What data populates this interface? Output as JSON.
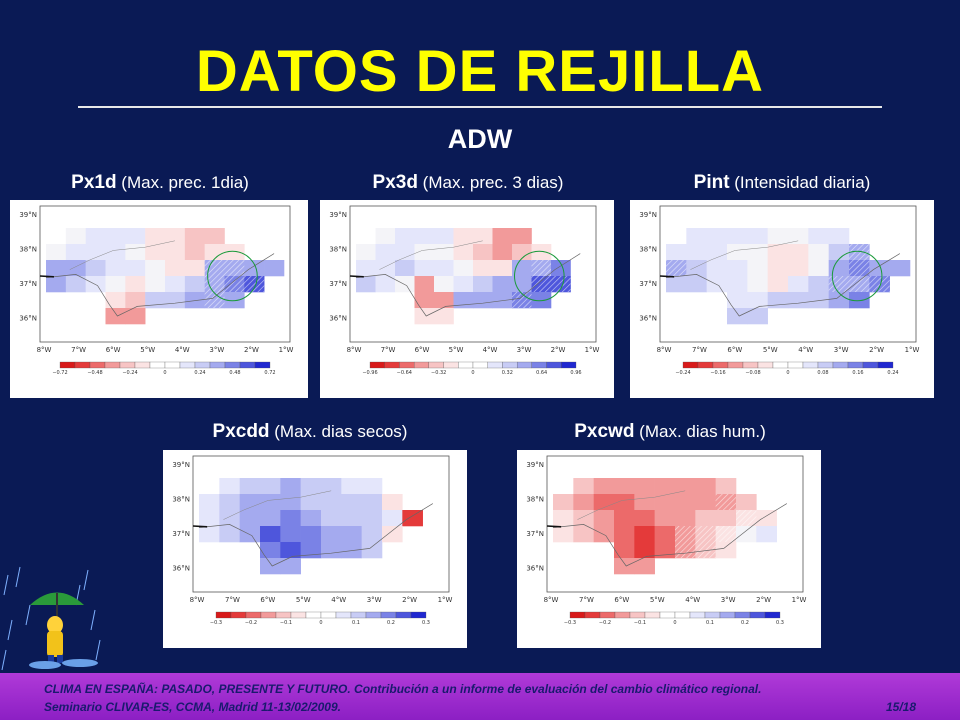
{
  "title": "DATOS DE REJILLA",
  "subtitle": "ADW",
  "panels": [
    {
      "code": "Px1d",
      "desc": " (Max. prec. 1dia)",
      "scale": [
        "−0.72",
        "−0.48",
        "−0.24",
        "0",
        "0.24",
        "0.48",
        "0.72"
      ],
      "palette": "div",
      "circle": true,
      "pattern": "A"
    },
    {
      "code": "Px3d",
      "desc": " (Max. prec. 3 dias)",
      "scale": [
        "−0.96",
        "−0.64",
        "−0.32",
        "0",
        "0.32",
        "0.64",
        "0.96"
      ],
      "palette": "div",
      "circle": true,
      "pattern": "B"
    },
    {
      "code": "Pint",
      "desc": " (Intensidad diaria)",
      "scale": [
        "−0.24",
        "−0.16",
        "−0.08",
        "0",
        "0.08",
        "0.16",
        "0.24"
      ],
      "palette": "div",
      "circle": true,
      "pattern": "C"
    },
    {
      "code": "Pxcdd",
      "desc": " (Max. dias secos)",
      "scale": [
        "−0.3",
        "−0.2",
        "−0.1",
        "0",
        "0.1",
        "0.2",
        "0.3"
      ],
      "palette": "div",
      "circle": false,
      "pattern": "D"
    },
    {
      "code": "Pxcwd",
      "desc": " (Max. dias hum.)",
      "scale": [
        "−0.3",
        "−0.2",
        "−0.1",
        "0",
        "0.1",
        "0.2",
        "0.3"
      ],
      "palette": "div",
      "circle": false,
      "pattern": "E"
    }
  ],
  "map_axes": {
    "lat": [
      "39°N",
      "38°N",
      "37°N",
      "36°N"
    ],
    "lon": [
      "8°W",
      "7°W",
      "6°W",
      "5°W",
      "4°W",
      "3°W",
      "2°W",
      "1°W"
    ]
  },
  "footer": {
    "line1": "CLIMA EN ESPAÑA: PASADO, PRESENTE Y FUTURO. Contribución a un informe de evaluación del cambio climático regional.",
    "line2": "Seminario CLIVAR-ES, CCMA, Madrid 11-13/02/2009.",
    "page": "15/18"
  },
  "colors": {
    "background": "#0a1a55",
    "title": "#ffff00",
    "footer": "#a030d0",
    "circle": "#1a9a3a"
  }
}
